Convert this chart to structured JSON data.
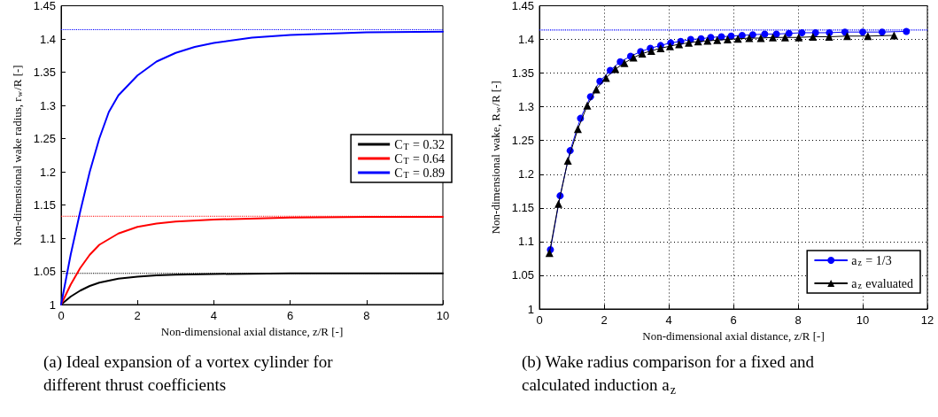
{
  "chart_data": [
    {
      "type": "line",
      "xlabel": "Non-dimensional axial distance, z/R [-]",
      "ylabel": "Non-dimensional wake radius, r$_{w}$/R [-]",
      "annotations": [
        "(a) Ideal expansion of a vortex cylinder for different thrust coefficients"
      ],
      "xlim": [
        0,
        10
      ],
      "xticks": [
        0,
        2,
        4,
        6,
        8,
        10
      ],
      "ylim": [
        1,
        1.45
      ],
      "yticks": [
        1,
        1.05,
        1.1,
        1.15,
        1.2,
        1.25,
        1.3,
        1.35,
        1.4,
        1.45
      ],
      "grid": false,
      "legend": "right",
      "marker": "none",
      "line_style": "solid",
      "series": [
        {
          "name": "C$_{T}$ = 0.32",
          "color": "#000000",
          "x": [
            0,
            0.25,
            0.5,
            0.75,
            1,
            1.5,
            2,
            2.5,
            3,
            4,
            6,
            10
          ],
          "values": [
            1,
            1.012,
            1.021,
            1.028,
            1.033,
            1.039,
            1.042,
            1.044,
            1.045,
            1.046,
            1.047,
            1.047
          ]
        },
        {
          "name": "C$_{T}$ = 0.64",
          "color": "#ff0000",
          "x": [
            0,
            0.25,
            0.5,
            0.75,
            1,
            1.5,
            2,
            2.5,
            3,
            4,
            6,
            8,
            10
          ],
          "values": [
            1,
            1.03,
            1.055,
            1.075,
            1.09,
            1.107,
            1.117,
            1.122,
            1.125,
            1.128,
            1.131,
            1.132,
            1.132
          ]
        },
        {
          "name": "C$_{T}$ = 0.89",
          "color": "#0000ff",
          "x": [
            0,
            0.25,
            0.5,
            0.75,
            1,
            1.25,
            1.5,
            2,
            2.5,
            3,
            3.5,
            4,
            5,
            6,
            8,
            10
          ],
          "values": [
            1,
            1.075,
            1.14,
            1.2,
            1.25,
            1.29,
            1.315,
            1.345,
            1.366,
            1.379,
            1.388,
            1.394,
            1.402,
            1.406,
            1.41,
            1.411
          ]
        }
      ],
      "ref_lines": [
        {
          "axis": "y",
          "value": 1.047,
          "color": "#000000",
          "line_style": "dotted"
        },
        {
          "axis": "y",
          "value": 1.133,
          "color": "#ff0000",
          "line_style": "dotted"
        },
        {
          "axis": "y",
          "value": 1.414,
          "color": "#0000ff",
          "line_style": "dotted"
        }
      ]
    },
    {
      "type": "line",
      "xlabel": "Non-dimensional axial distance, z/R [-]",
      "ylabel": "Non-dimensional wake, R$_{w}$/R [-]",
      "annotations": [
        "(b) Wake radius comparison for a fixed and calculated induction a$_{z}$"
      ],
      "xlim": [
        0,
        12
      ],
      "xticks": [
        0,
        2,
        4,
        6,
        8,
        10,
        12
      ],
      "ylim": [
        1,
        1.45
      ],
      "yticks": [
        1,
        1.05,
        1.1,
        1.15,
        1.2,
        1.25,
        1.3,
        1.35,
        1.4,
        1.45
      ],
      "grid": true,
      "legend": "bottom right",
      "line_style": "solid",
      "series": [
        {
          "name": "a$_{z}$ = 1/3",
          "color": "#0000ff",
          "marker": "circle",
          "x": [
            0.34,
            0.64,
            0.95,
            1.27,
            1.58,
            1.87,
            2.19,
            2.5,
            2.82,
            3.13,
            3.43,
            3.75,
            4.06,
            4.37,
            4.68,
            5.0,
            5.3,
            5.63,
            5.93,
            6.27,
            6.6,
            6.97,
            7.33,
            7.72,
            8.12,
            8.54,
            8.97,
            9.45,
            10.0,
            10.6,
            11.35
          ],
          "values": [
            1.088,
            1.168,
            1.235,
            1.283,
            1.315,
            1.338,
            1.354,
            1.367,
            1.375,
            1.382,
            1.387,
            1.391,
            1.395,
            1.397,
            1.4,
            1.401,
            1.403,
            1.404,
            1.405,
            1.406,
            1.407,
            1.408,
            1.408,
            1.409,
            1.41,
            1.41,
            1.41,
            1.411,
            1.411,
            1.411,
            1.412
          ]
        },
        {
          "name": "a$_{z}$ evaluated",
          "color": "#000000",
          "marker": "triangle",
          "x": [
            0.31,
            0.59,
            0.88,
            1.19,
            1.48,
            1.76,
            2.06,
            2.35,
            2.63,
            2.91,
            3.18,
            3.46,
            3.75,
            4.04,
            4.32,
            4.62,
            4.91,
            5.2,
            5.5,
            5.82,
            6.14,
            6.49,
            6.85,
            7.22,
            7.6,
            8.02,
            8.46,
            8.96,
            9.52,
            10.16,
            10.97
          ],
          "values": [
            1.083,
            1.156,
            1.22,
            1.267,
            1.302,
            1.326,
            1.343,
            1.356,
            1.365,
            1.373,
            1.379,
            1.383,
            1.387,
            1.39,
            1.393,
            1.395,
            1.397,
            1.398,
            1.399,
            1.4,
            1.401,
            1.402,
            1.402,
            1.403,
            1.403,
            1.403,
            1.404,
            1.404,
            1.405,
            1.405,
            1.406
          ]
        }
      ],
      "ref_lines": [
        {
          "axis": "y",
          "value": 1.414,
          "color": "#0000ff",
          "line_style": "dotted"
        }
      ]
    }
  ]
}
